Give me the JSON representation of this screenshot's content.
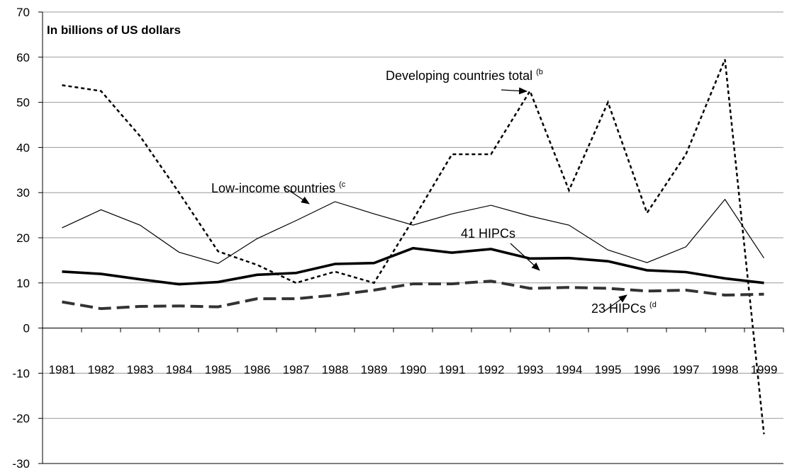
{
  "chart_data": {
    "type": "line",
    "title": "In billions of US dollars",
    "xlabel": "",
    "ylabel": "",
    "ylim": [
      -30,
      70
    ],
    "yticks": [
      70,
      60,
      50,
      40,
      30,
      20,
      10,
      0,
      -10,
      -20,
      -30
    ],
    "x": [
      "1981",
      "1982",
      "1983",
      "1984",
      "1985",
      "1986",
      "1987",
      "1988",
      "1989",
      "1990",
      "1991",
      "1992",
      "1993",
      "1994",
      "1995",
      "1996",
      "1997",
      "1998",
      "1999"
    ],
    "series": [
      {
        "key": "dev",
        "values": [
          53.8,
          52.5,
          42.5,
          30.0,
          17.0,
          14.0,
          10.0,
          12.5,
          10.0,
          24.0,
          38.5,
          38.5,
          52.5,
          30.5,
          50.0,
          25.5,
          38.5,
          59.5,
          -23.5
        ]
      },
      {
        "key": "low",
        "values": [
          22.2,
          26.2,
          22.8,
          16.8,
          14.3,
          19.8,
          23.8,
          28.0,
          25.3,
          22.8,
          25.3,
          27.2,
          24.8,
          22.8,
          17.3,
          14.5,
          18.0,
          28.5,
          15.5
        ]
      },
      {
        "key": "hipc41",
        "values": [
          12.5,
          12.0,
          10.8,
          9.7,
          10.2,
          11.8,
          12.2,
          14.2,
          14.4,
          17.7,
          16.7,
          17.5,
          15.4,
          15.5,
          14.8,
          12.8,
          12.4,
          11.0,
          10.0
        ]
      },
      {
        "key": "hipc23",
        "values": [
          5.8,
          4.3,
          4.8,
          4.9,
          4.7,
          6.5,
          6.5,
          7.3,
          8.4,
          9.8,
          9.8,
          10.4,
          8.8,
          9.0,
          8.8,
          8.2,
          8.4,
          7.3,
          7.5
        ]
      }
    ],
    "annotations": [
      {
        "key": "dev",
        "text": "Developing countries total",
        "sup": "(b"
      },
      {
        "key": "low",
        "text": "Low-income countries",
        "sup": "(c"
      },
      {
        "key": "hipc41",
        "text": "41 HIPCs",
        "sup": ""
      },
      {
        "key": "hipc23",
        "text": "23 HIPCs",
        "sup": "(d"
      }
    ],
    "grid": true,
    "legend": "none"
  }
}
